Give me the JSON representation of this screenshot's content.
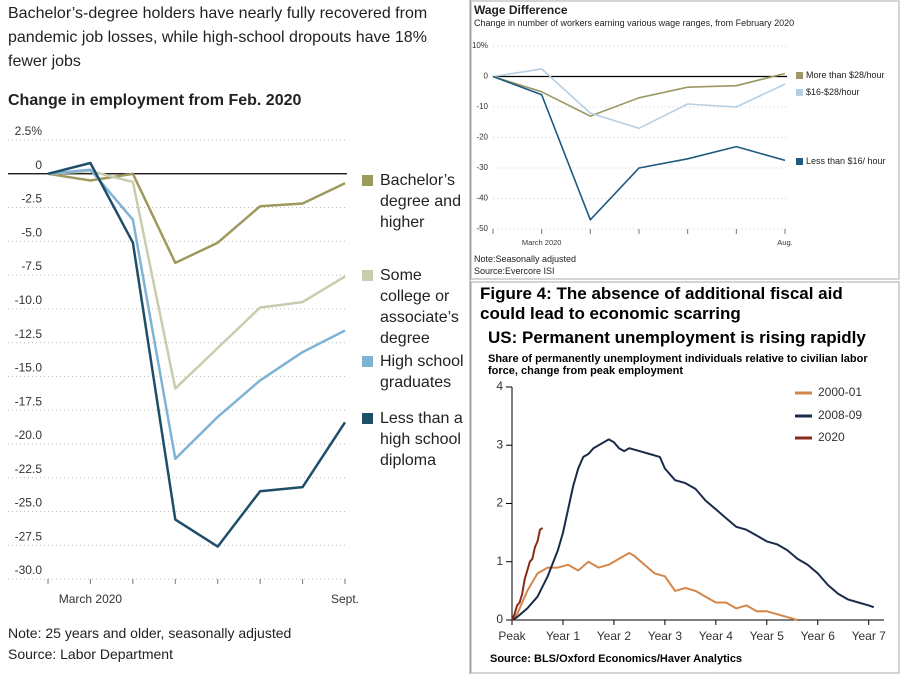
{
  "chart_data": [
    {
      "type": "line",
      "title": "Bachelor’s-degree holders have nearly fully recovered from pandemic job losses, while high-school dropouts have 18% fewer jobs",
      "subtitle": "Change in employment from Feb. 2020",
      "categories": [
        null,
        "March 2020",
        null,
        null,
        null,
        null,
        null,
        "Sept."
      ],
      "series": [
        {
          "name": "Bachelor’s degree and higher",
          "color": "#9e9a5e",
          "values": [
            0,
            -0.5,
            0,
            -6.6,
            -5.1,
            -2.4,
            -2.2,
            -0.7
          ]
        },
        {
          "name": "Some college or associate’s degree",
          "color": "#c9cdae",
          "values": [
            0,
            0.2,
            -0.6,
            -15.9,
            -12.9,
            -9.9,
            -9.5,
            -7.6
          ]
        },
        {
          "name": "High school graduates",
          "color": "#7fb3d5",
          "values": [
            0,
            0.3,
            -3.4,
            -21.1,
            -18,
            -15.3,
            -13.2,
            -11.6
          ]
        },
        {
          "name": "Less than a high school diploma",
          "color": "#1f4e69",
          "values": [
            0,
            0.8,
            -5.1,
            -25.6,
            -27.6,
            -23.5,
            -23.2,
            -18.4
          ]
        }
      ],
      "ylim": [
        -30,
        2.5
      ],
      "yticks": [
        {
          "value": 2.5,
          "label": "2.5%"
        },
        0,
        -2.5,
        {
          "value": -5,
          "label": "-5.0"
        },
        -7.5,
        {
          "value": -10,
          "label": "-10.0"
        },
        -12.5,
        {
          "value": -15,
          "label": "-15.0"
        },
        -17.5,
        {
          "value": -20,
          "label": "-20.0"
        },
        -22.5,
        {
          "value": -25,
          "label": "-25.0"
        },
        -27.5,
        {
          "value": -30,
          "label": "-30.0"
        }
      ],
      "grid": true,
      "note": "Note: 25 years and older, seasonally adjusted",
      "source": "Source: Labor Department"
    },
    {
      "type": "line",
      "title": "Wage Difference",
      "subtitle": "Change in number of workers earning various wage ranges, from February 2020",
      "categories": [
        null,
        "March 2020",
        null,
        null,
        null,
        null,
        "Aug."
      ],
      "series": [
        {
          "name": "More than $28/hour",
          "color": "#9b9865",
          "values": [
            0,
            -5,
            -13,
            -7,
            -3.5,
            -3,
            1
          ]
        },
        {
          "name": "$16-$28/hour",
          "color": "#b7cfe3",
          "values": [
            0,
            2.5,
            -12,
            -17,
            -9,
            -10,
            -2.5
          ]
        },
        {
          "name": "Less than $16/ hour",
          "color": "#1f5b80",
          "values": [
            0,
            -6,
            -47,
            -30,
            -27,
            -23,
            -27.5
          ]
        }
      ],
      "ylim": [
        -50,
        10
      ],
      "yticks": [
        {
          "value": 10,
          "label": "10%"
        },
        0,
        -10,
        -20,
        -30,
        -40,
        -50
      ],
      "grid": true,
      "note": "Note:Seasonally adjusted",
      "source": "Source:Evercore ISI"
    },
    {
      "type": "line",
      "title": "Figure 4: The absence of additional fiscal aid could lead to economic scarring",
      "subtitle": "US: Permanent unemployment is rising rapidly",
      "description": "Share of permanently unemployment individuals relative to civilian labor force, change from peak employment",
      "series": [
        {
          "name": "2000-01",
          "color": "#d4864a",
          "x": [
            0,
            0.1,
            0.3,
            0.5,
            0.7,
            0.9,
            1.1,
            1.3,
            1.5,
            1.7,
            1.9,
            2.1,
            2.3,
            2.4,
            2.6,
            2.8,
            3.0,
            3.2,
            3.4,
            3.6,
            3.8,
            4.0,
            4.2,
            4.4,
            4.6,
            4.8,
            5.0,
            5.2,
            5.4,
            5.6
          ],
          "values": [
            0,
            0.1,
            0.5,
            0.8,
            0.9,
            0.9,
            0.95,
            0.85,
            1.0,
            0.9,
            0.95,
            1.05,
            1.15,
            1.1,
            0.95,
            0.8,
            0.75,
            0.5,
            0.55,
            0.5,
            0.4,
            0.3,
            0.3,
            0.2,
            0.25,
            0.15,
            0.15,
            0.1,
            0.05,
            0
          ]
        },
        {
          "name": "2008-09",
          "color": "#1b2a4a",
          "x": [
            0,
            0.1,
            0.3,
            0.5,
            0.7,
            0.9,
            1.0,
            1.1,
            1.2,
            1.3,
            1.4,
            1.5,
            1.6,
            1.7,
            1.8,
            1.9,
            2.0,
            2.1,
            2.2,
            2.3,
            2.5,
            2.7,
            2.9,
            3.0,
            3.2,
            3.4,
            3.6,
            3.8,
            4.0,
            4.2,
            4.4,
            4.6,
            4.8,
            5.0,
            5.2,
            5.4,
            5.6,
            5.8,
            6.0,
            6.2,
            6.4,
            6.6,
            6.8,
            7.0,
            7.1
          ],
          "values": [
            0,
            0.05,
            0.2,
            0.4,
            0.75,
            1.2,
            1.5,
            1.9,
            2.3,
            2.6,
            2.8,
            2.85,
            2.95,
            3.0,
            3.05,
            3.1,
            3.05,
            2.95,
            2.9,
            2.95,
            2.9,
            2.85,
            2.8,
            2.6,
            2.4,
            2.35,
            2.25,
            2.05,
            1.9,
            1.75,
            1.6,
            1.55,
            1.45,
            1.35,
            1.3,
            1.2,
            1.05,
            0.95,
            0.8,
            0.6,
            0.45,
            0.35,
            0.3,
            0.25,
            0.22
          ]
        },
        {
          "name": "2020",
          "color": "#8b2a1a",
          "x": [
            0,
            0.05,
            0.1,
            0.15,
            0.2,
            0.25,
            0.3,
            0.35,
            0.4,
            0.45,
            0.5,
            0.55,
            0.6
          ],
          "values": [
            0,
            0.1,
            0.25,
            0.3,
            0.45,
            0.7,
            0.85,
            1.0,
            1.05,
            1.25,
            1.35,
            1.55,
            1.58
          ]
        }
      ],
      "xlim": [
        0,
        7.3
      ],
      "xticks": [
        {
          "value": 0,
          "label": "Peak"
        },
        {
          "value": 1,
          "label": "Year 1"
        },
        {
          "value": 2,
          "label": "Year 2"
        },
        {
          "value": 3,
          "label": "Year 3"
        },
        {
          "value": 4,
          "label": "Year 4"
        },
        {
          "value": 5,
          "label": "Year 5"
        },
        {
          "value": 6,
          "label": "Year 6"
        },
        {
          "value": 7,
          "label": "Year 7"
        }
      ],
      "ylim": [
        0,
        4
      ],
      "yticks": [
        0,
        1,
        2,
        3,
        4
      ],
      "source": "Source: BLS/Oxford Economics/Haver Analytics"
    }
  ]
}
